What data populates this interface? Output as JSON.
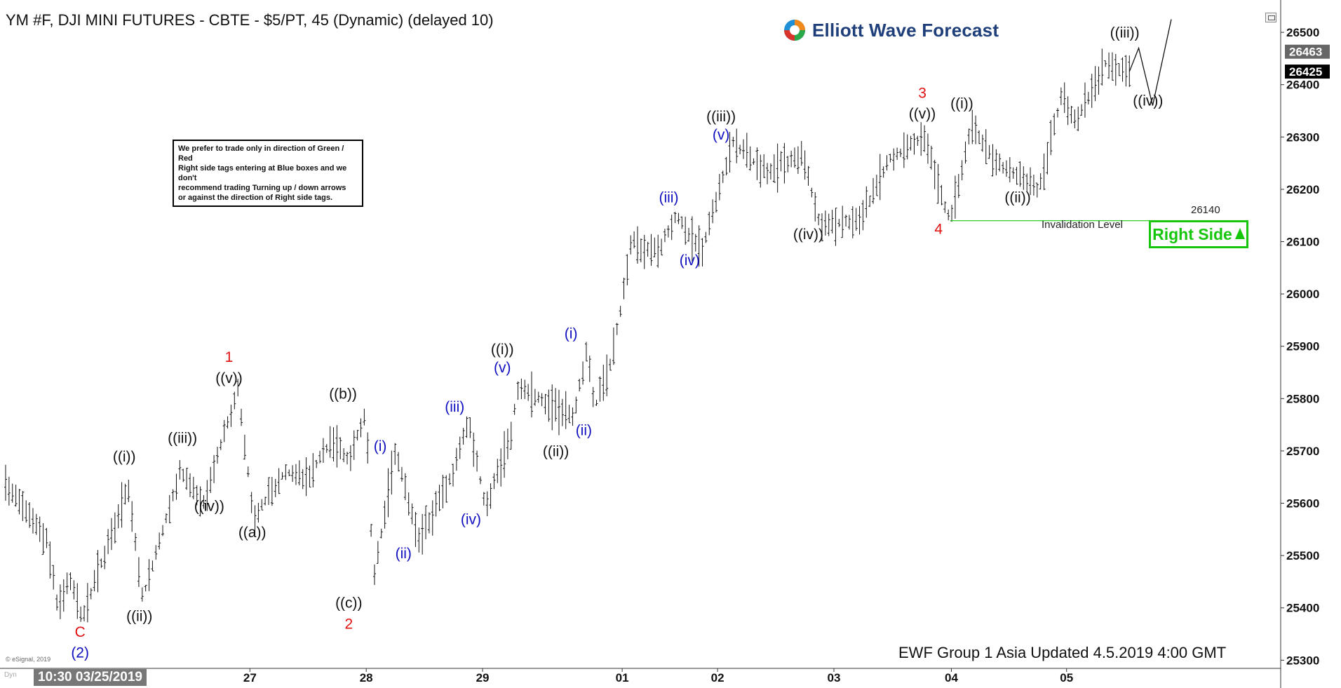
{
  "header": {
    "title": "YM #F, DJI MINI FUTURES - CBTE - $5/PT, 45 (Dynamic) (delayed 10)",
    "brand": "Elliott Wave Forecast"
  },
  "note": {
    "lines": [
      "We prefer to trade only in direction of Green / Red",
      "Right side tags entering at Blue boxes and we don't",
      "recommend trading Turning up / down arrows",
      "or against the direction of Right side tags."
    ]
  },
  "footer": {
    "updated": "EWF Group 1 Asia Updated 4.5.2019 4:00 GMT",
    "copyright": "© eSignal, 2019",
    "start_time": "10:30 03/25/2019",
    "dyn": "Dyn"
  },
  "right_side_tag": {
    "label": "Right Side",
    "icon": "arrow-up-icon",
    "color": "#16c60c"
  },
  "invalidation": {
    "label": "Invalidation Level",
    "value": "26140",
    "level": 26140,
    "color": "#16c60c"
  },
  "icons": {
    "window": "restore-window-icon",
    "logo": "ewf-logo-icon"
  },
  "colors": {
    "red": "#e01010",
    "blue": "#1010c0",
    "black": "#111111",
    "green": "#16c60c"
  },
  "chart_data": {
    "type": "bar",
    "ylim": [
      25275,
      26535
    ],
    "y_ticks": [
      25300,
      25400,
      25500,
      25600,
      25700,
      25800,
      25900,
      26000,
      26100,
      26200,
      26300,
      26400,
      26500
    ],
    "x_ticks": [
      {
        "label": "27",
        "t": 2.1
      },
      {
        "label": "28",
        "t": 3.1
      },
      {
        "label": "29",
        "t": 4.1
      },
      {
        "label": "01",
        "t": 5.3
      },
      {
        "label": "02",
        "t": 6.12
      },
      {
        "label": "03",
        "t": 7.12
      },
      {
        "label": "04",
        "t": 8.13
      },
      {
        "label": "05",
        "t": 9.12
      }
    ],
    "x_range": [
      0.0,
      10.02
    ],
    "price_tags": [
      {
        "value": "26463",
        "level": 26463,
        "style": "gray"
      },
      {
        "value": "26425",
        "level": 26425,
        "style": "black"
      }
    ],
    "path": [
      [
        0.0,
        25640
      ],
      [
        0.35,
        25530
      ],
      [
        0.45,
        25400
      ],
      [
        0.55,
        25460
      ],
      [
        0.66,
        25380
      ],
      [
        1.05,
        25630
      ],
      [
        1.18,
        25420
      ],
      [
        1.5,
        25660
      ],
      [
        1.7,
        25600
      ],
      [
        2.0,
        25820
      ],
      [
        2.13,
        25570
      ],
      [
        2.4,
        25660
      ],
      [
        2.6,
        25650
      ],
      [
        2.8,
        25720
      ],
      [
        2.95,
        25680
      ],
      [
        3.1,
        25780
      ],
      [
        3.16,
        25450
      ],
      [
        3.35,
        25700
      ],
      [
        3.55,
        25530
      ],
      [
        3.85,
        25660
      ],
      [
        3.98,
        25760
      ],
      [
        4.13,
        25590
      ],
      [
        4.35,
        25740
      ],
      [
        4.4,
        25820
      ],
      [
        4.6,
        25800
      ],
      [
        4.75,
        25780
      ],
      [
        4.88,
        25760
      ],
      [
        5.0,
        25900
      ],
      [
        5.06,
        25780
      ],
      [
        5.22,
        25880
      ],
      [
        5.3,
        25990
      ],
      [
        5.38,
        26100
      ],
      [
        5.6,
        26080
      ],
      [
        5.77,
        26150
      ],
      [
        5.98,
        26080
      ],
      [
        6.25,
        26290
      ],
      [
        6.55,
        26230
      ],
      [
        6.85,
        26270
      ],
      [
        7.0,
        26130
      ],
      [
        7.35,
        26140
      ],
      [
        7.6,
        26260
      ],
      [
        7.9,
        26300
      ],
      [
        8.08,
        26160
      ],
      [
        8.12,
        26140
      ],
      [
        8.3,
        26320
      ],
      [
        8.52,
        26250
      ],
      [
        8.88,
        26200
      ],
      [
        9.08,
        26380
      ],
      [
        9.2,
        26330
      ],
      [
        9.45,
        26440
      ],
      [
        9.66,
        26425
      ]
    ],
    "projection": [
      [
        9.66,
        26425
      ],
      [
        9.74,
        26470
      ],
      [
        9.86,
        26360
      ],
      [
        10.02,
        26525
      ]
    ],
    "labels": [
      {
        "text": "C",
        "t": 0.64,
        "v": 25345,
        "color": "red"
      },
      {
        "text": "(2)",
        "t": 0.64,
        "v": 25305,
        "color": "blue"
      },
      {
        "text": "((i))",
        "t": 1.02,
        "v": 25680,
        "color": "black"
      },
      {
        "text": "((ii))",
        "t": 1.15,
        "v": 25375,
        "color": "black"
      },
      {
        "text": "((iii))",
        "t": 1.52,
        "v": 25715,
        "color": "black"
      },
      {
        "text": "((iv))",
        "t": 1.75,
        "v": 25585,
        "color": "black"
      },
      {
        "text": "1",
        "t": 1.92,
        "v": 25870,
        "color": "red"
      },
      {
        "text": "((v))",
        "t": 1.92,
        "v": 25830,
        "color": "black"
      },
      {
        "text": "((a))",
        "t": 2.12,
        "v": 25535,
        "color": "black"
      },
      {
        "text": "((b))",
        "t": 2.9,
        "v": 25800,
        "color": "black"
      },
      {
        "text": "(i)",
        "t": 3.22,
        "v": 25700,
        "color": "blue"
      },
      {
        "text": "((c))",
        "t": 2.95,
        "v": 25400,
        "color": "black"
      },
      {
        "text": "2",
        "t": 2.95,
        "v": 25360,
        "color": "red"
      },
      {
        "text": "(ii)",
        "t": 3.42,
        "v": 25495,
        "color": "blue"
      },
      {
        "text": "(iii)",
        "t": 3.86,
        "v": 25775,
        "color": "blue"
      },
      {
        "text": "(iv)",
        "t": 4.0,
        "v": 25560,
        "color": "blue"
      },
      {
        "text": "((i))",
        "t": 4.27,
        "v": 25885,
        "color": "black"
      },
      {
        "text": "(v)",
        "t": 4.27,
        "v": 25850,
        "color": "blue"
      },
      {
        "text": "((ii))",
        "t": 4.73,
        "v": 25690,
        "color": "black"
      },
      {
        "text": "(i)",
        "t": 4.86,
        "v": 25915,
        "color": "blue"
      },
      {
        "text": "(ii)",
        "t": 4.97,
        "v": 25730,
        "color": "blue"
      },
      {
        "text": "(iii)",
        "t": 5.7,
        "v": 26175,
        "color": "blue"
      },
      {
        "text": "(iv)",
        "t": 5.88,
        "v": 26055,
        "color": "blue"
      },
      {
        "text": "((iii))",
        "t": 6.15,
        "v": 26330,
        "color": "black"
      },
      {
        "text": "(v)",
        "t": 6.15,
        "v": 26295,
        "color": "blue"
      },
      {
        "text": "((iv))",
        "t": 6.9,
        "v": 26105,
        "color": "black"
      },
      {
        "text": "3",
        "t": 7.88,
        "v": 26375,
        "color": "red"
      },
      {
        "text": "((v))",
        "t": 7.88,
        "v": 26335,
        "color": "black"
      },
      {
        "text": "4",
        "t": 8.02,
        "v": 26115,
        "color": "red"
      },
      {
        "text": "((i))",
        "t": 8.22,
        "v": 26355,
        "color": "black"
      },
      {
        "text": "((ii))",
        "t": 8.7,
        "v": 26175,
        "color": "black"
      },
      {
        "text": "((iii))",
        "t": 9.62,
        "v": 26490,
        "color": "black"
      },
      {
        "text": "((iv))",
        "t": 9.82,
        "v": 26360,
        "color": "black"
      }
    ]
  }
}
